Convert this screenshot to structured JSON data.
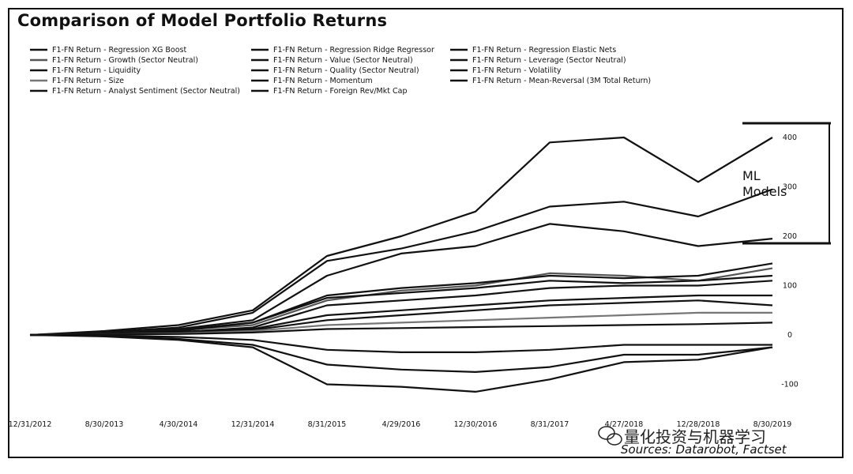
{
  "chart_data": {
    "type": "line",
    "title": "Comparison of Model Portfolio Returns",
    "x": [
      "12/31/2012",
      "8/30/2013",
      "4/30/2014",
      "12/31/2014",
      "8/31/2015",
      "4/29/2016",
      "12/30/2016",
      "8/31/2017",
      "4/27/2018",
      "12/28/2018",
      "8/30/2019"
    ],
    "xtick_labels": [
      "12/31/2012",
      "8/30/2013",
      "4/30/2014",
      "12/31/2014",
      "8/31/2015",
      "4/29/2016",
      "12/30/2016",
      "8/31/2017",
      "4/27/2018",
      "12/28/2018",
      "8/30/2019"
    ],
    "yticks": [
      -100,
      0,
      100,
      200,
      300,
      400
    ],
    "ylim": [
      -130,
      440
    ],
    "y_axis_position": "right",
    "grid": false,
    "legend_position": "top-left",
    "series": [
      {
        "name": "F1-FN Return - Regression XG Boost",
        "color": "#111111",
        "values": [
          0,
          8,
          20,
          50,
          160,
          200,
          250,
          390,
          400,
          310,
          400
        ]
      },
      {
        "name": "F1-FN Return - Regression Ridge Regressor",
        "color": "#111111",
        "values": [
          0,
          6,
          15,
          45,
          150,
          175,
          210,
          260,
          270,
          240,
          295
        ]
      },
      {
        "name": "F1-FN Return - Regression Elastic Nets",
        "color": "#111111",
        "values": [
          0,
          5,
          12,
          30,
          120,
          165,
          180,
          225,
          210,
          180,
          195
        ]
      },
      {
        "name": "F1-FN Return - Growth (Sector Neutral)",
        "color": "#555555",
        "values": [
          0,
          3,
          10,
          20,
          70,
          90,
          100,
          125,
          120,
          110,
          135
        ]
      },
      {
        "name": "F1-FN Return - Value (Sector Neutral)",
        "color": "#111111",
        "values": [
          0,
          2,
          8,
          25,
          80,
          95,
          105,
          120,
          115,
          120,
          145
        ]
      },
      {
        "name": "F1-FN Return - Leverage (Sector Neutral)",
        "color": "#111111",
        "values": [
          0,
          3,
          10,
          25,
          75,
          85,
          95,
          110,
          105,
          110,
          120
        ]
      },
      {
        "name": "F1-FN Return - Liquidity",
        "color": "#111111",
        "values": [
          0,
          2,
          6,
          15,
          60,
          70,
          80,
          95,
          100,
          100,
          110
        ]
      },
      {
        "name": "F1-FN Return - Quality (Sector Neutral)",
        "color": "#111111",
        "values": [
          0,
          2,
          5,
          12,
          40,
          50,
          60,
          70,
          75,
          80,
          80
        ]
      },
      {
        "name": "F1-FN Return - Volatility",
        "color": "#111111",
        "values": [
          0,
          1,
          4,
          10,
          30,
          40,
          50,
          60,
          65,
          70,
          60
        ]
      },
      {
        "name": "F1-FN Return - Size",
        "color": "#777777",
        "values": [
          0,
          1,
          3,
          8,
          20,
          25,
          30,
          35,
          40,
          45,
          45
        ]
      },
      {
        "name": "F1-FN Return - Momentum",
        "color": "#111111",
        "values": [
          0,
          1,
          2,
          5,
          12,
          14,
          16,
          18,
          20,
          22,
          25
        ]
      },
      {
        "name": "F1-FN Return - Mean-Reversal (3M Total Return)",
        "color": "#111111",
        "values": [
          0,
          -2,
          -8,
          -20,
          -60,
          -70,
          -75,
          -65,
          -40,
          -40,
          -25
        ]
      },
      {
        "name": "F1-FN Return - Analyst Sentiment (Sector Neutral)",
        "color": "#111111",
        "values": [
          0,
          -3,
          -10,
          -25,
          -100,
          -105,
          -115,
          -90,
          -55,
          -50,
          -25
        ]
      },
      {
        "name": "F1-FN Return - Foreign Rev/Mkt Cap",
        "color": "#111111",
        "values": [
          0,
          -1,
          -4,
          -10,
          -30,
          -35,
          -35,
          -30,
          -20,
          -20,
          -20
        ]
      }
    ],
    "annotations": [
      {
        "text": "ML Models",
        "target_range": [
          190,
          425
        ]
      }
    ],
    "source": "Sources: Datarobot, Factset"
  },
  "watermark": "量化投资与机器学习",
  "watermark_icon": "wechat-icon"
}
